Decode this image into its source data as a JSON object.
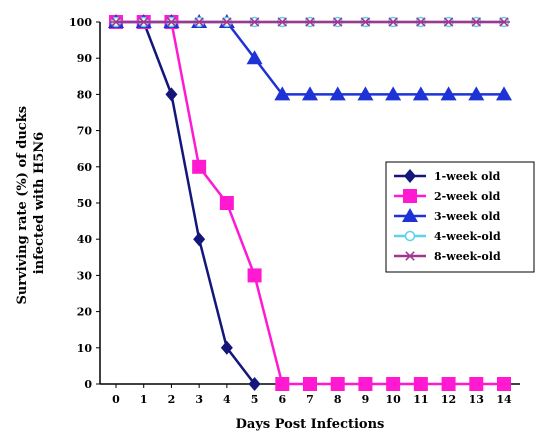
{
  "chart_data": {
    "type": "line",
    "title": "",
    "xlabel": "Days Post Infections",
    "ylabel_lines": [
      "Surviving rate (%) of ducks",
      "infected with H5N6"
    ],
    "x": [
      0,
      1,
      2,
      3,
      4,
      5,
      6,
      7,
      8,
      9,
      10,
      11,
      12,
      13,
      14
    ],
    "xlim": [
      0,
      14
    ],
    "ylim": [
      0,
      100
    ],
    "y_ticks": [
      0,
      10,
      20,
      30,
      40,
      50,
      60,
      70,
      80,
      90,
      100
    ],
    "grid": false,
    "legend_position": "right",
    "series": [
      {
        "name": "1-week old",
        "color": "#14167a",
        "marker": "diamond",
        "values": [
          100,
          100,
          80,
          40,
          10,
          0,
          null,
          null,
          null,
          null,
          null,
          null,
          null,
          null,
          null
        ]
      },
      {
        "name": "2-week old",
        "color": "#ff1ad1",
        "marker": "square",
        "values": [
          100,
          100,
          100,
          60,
          50,
          30,
          0,
          0,
          0,
          0,
          0,
          0,
          0,
          0,
          0
        ]
      },
      {
        "name": "3-week old",
        "color": "#1d33d6",
        "marker": "triangle",
        "values": [
          100,
          100,
          100,
          100,
          100,
          90,
          80,
          80,
          80,
          80,
          80,
          80,
          80,
          80,
          80
        ]
      },
      {
        "name": "4-week-old",
        "color": "#5fd3e6",
        "marker": "circle",
        "values": [
          100,
          100,
          100,
          100,
          100,
          100,
          100,
          100,
          100,
          100,
          100,
          100,
          100,
          100,
          100
        ]
      },
      {
        "name": "8-week-old",
        "color": "#a3358f",
        "marker": "asterisk",
        "values": [
          100,
          100,
          100,
          100,
          100,
          100,
          100,
          100,
          100,
          100,
          100,
          100,
          100,
          100,
          100
        ]
      }
    ]
  }
}
